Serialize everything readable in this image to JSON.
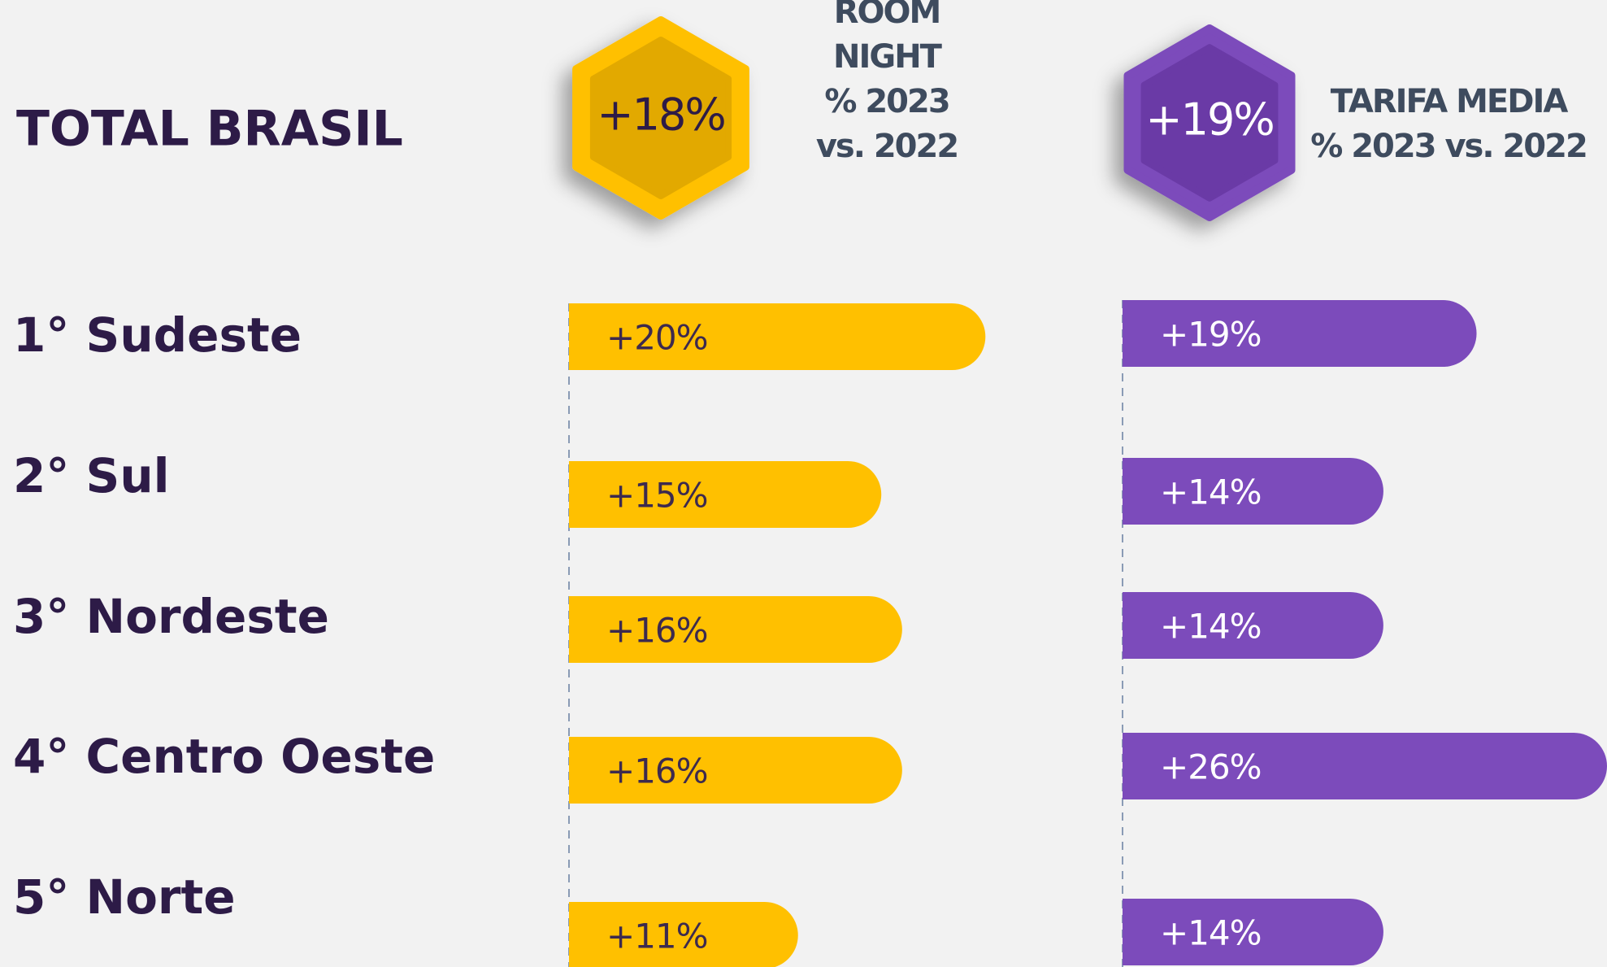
{
  "chart_data": {
    "type": "bar",
    "orientation": "horizontal",
    "title": "TOTAL BRASIL",
    "categories": [
      "1° Sudeste",
      "2° Sul",
      "3° Nordeste",
      "4° Centro Oeste",
      "5° Norte"
    ],
    "series": [
      {
        "name": "ROOM NIGHT",
        "subtitle": "% 2023 vs. 2022",
        "color": "#ffc000",
        "total": 18,
        "total_label": "+18%",
        "values": [
          20,
          15,
          16,
          16,
          11
        ],
        "value_labels": [
          "+20%",
          "+15%",
          "+16%",
          "+16%",
          "+11%"
        ],
        "xlim": [
          0,
          26
        ]
      },
      {
        "name": "TARIFA MEDIA",
        "subtitle": "% 2023 vs. 2022",
        "color": "#7c4bbb",
        "total": 19,
        "total_label": "+19%",
        "values": [
          19,
          14,
          14,
          26,
          14
        ],
        "value_labels": [
          "+19%",
          "+14%",
          "+14%",
          "+26%",
          "+14%"
        ],
        "xlim": [
          0,
          26
        ]
      }
    ]
  }
}
